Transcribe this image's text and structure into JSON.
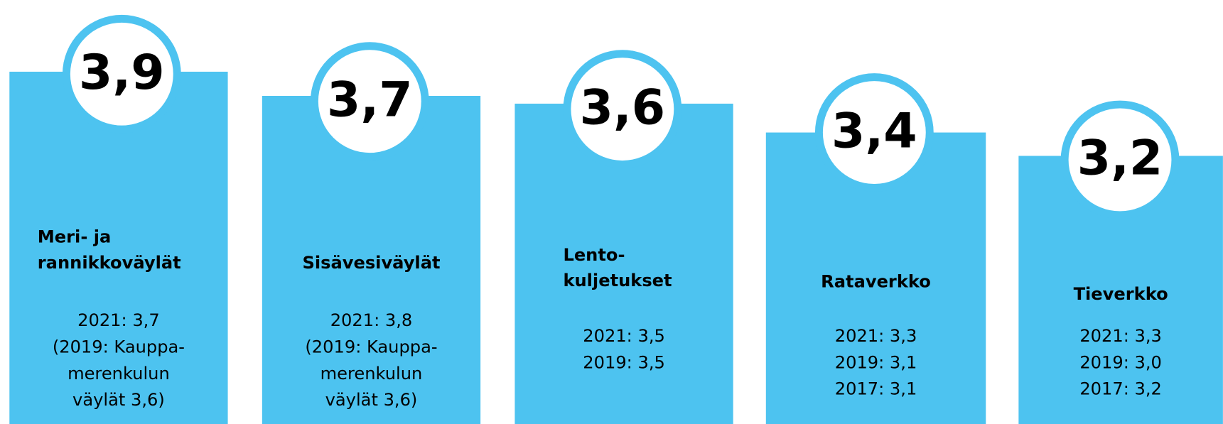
{
  "cards": [
    {
      "score": "3,9",
      "title": [
        "Meri- ja",
        "rannikkoväylät"
      ],
      "lines": [
        "2021: 3,7",
        "(2019: Kauppa-",
        "merenkulun",
        "väylät 3,6)"
      ]
    },
    {
      "score": "3,7",
      "title": [
        "Sisävesiväylät"
      ],
      "lines": [
        "2021: 3,8",
        "(2019: Kauppa-",
        "merenkulun",
        "väylät 3,6)"
      ]
    },
    {
      "score": "3,6",
      "title": [
        "Lento-",
        "kuljetukset"
      ],
      "lines": [
        "2021: 3,5",
        "2019: 3,5"
      ]
    },
    {
      "score": "3,4",
      "title": [
        "Rataverkko"
      ],
      "lines": [
        "2021: 3,3",
        "2019: 3,1",
        "2017: 3,1"
      ]
    },
    {
      "score": "3,2",
      "title": [
        "Tieverkko"
      ],
      "lines": [
        "2021: 3,3",
        "2019: 3,0",
        "2017: 3,2"
      ]
    }
  ]
}
